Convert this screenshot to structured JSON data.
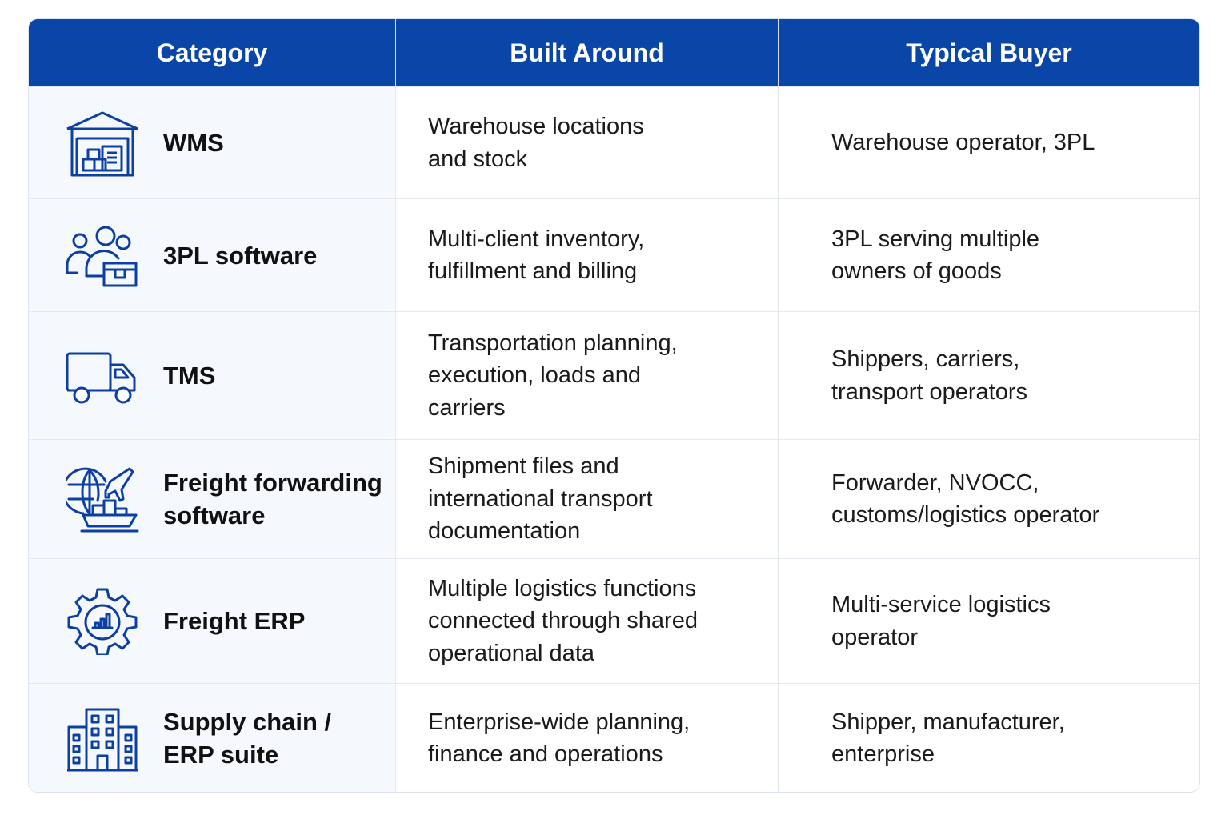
{
  "header": {
    "category": "Category",
    "built_around": "Built Around",
    "typical_buyer": "Typical Buyer"
  },
  "colors": {
    "header_background": "#0a46a8",
    "icon_blue": "#0b3fa3",
    "first_column_background": "#f5f8fc"
  },
  "rows": [
    {
      "icon": "warehouse-icon",
      "category": "WMS",
      "built_around": "Warehouse locations\nand stock",
      "typical_buyer": "Warehouse operator, 3PL"
    },
    {
      "icon": "clients-box-icon",
      "category": "3PL software",
      "built_around": "Multi-client inventory,\nfulfillment and billing",
      "typical_buyer": "3PL serving multiple\nowners of goods"
    },
    {
      "icon": "truck-icon",
      "category": "TMS",
      "built_around": "Transportation planning,\nexecution, loads and\ncarriers",
      "typical_buyer": "Shippers, carriers,\ntransport operators"
    },
    {
      "icon": "globe-plane-ship-icon",
      "category": "Freight forwarding\nsoftware",
      "built_around": "Shipment files and\ninternational transport\ndocumentation",
      "typical_buyer": "Forwarder, NVOCC,\ncustoms/logistics operator"
    },
    {
      "icon": "gear-chart-icon",
      "category": "Freight ERP",
      "built_around": "Multiple logistics functions\nconnected through shared\noperational data",
      "typical_buyer": "Multi-service logistics\noperator"
    },
    {
      "icon": "office-building-icon",
      "category": "Supply chain /\nERP suite",
      "built_around": "Enterprise-wide planning,\nfinance and operations",
      "typical_buyer": "Shipper, manufacturer,\nenterprise"
    }
  ]
}
